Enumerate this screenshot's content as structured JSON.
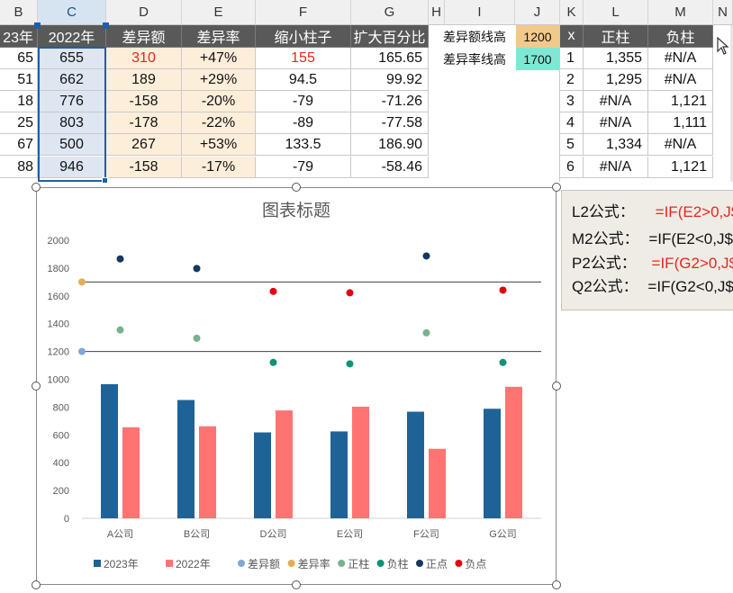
{
  "columns": [
    "B",
    "C",
    "D",
    "E",
    "F",
    "G",
    "H",
    "I",
    "J",
    "K",
    "L",
    "M",
    "N"
  ],
  "table1": {
    "headers": [
      "23年",
      "2022年",
      "差异额",
      "差异率",
      "缩小柱子",
      "扩大百分比"
    ],
    "rows": [
      [
        "65",
        "655",
        "310",
        "+47%",
        "155",
        "165.65"
      ],
      [
        "51",
        "662",
        "189",
        "+29%",
        "94.5",
        "99.92"
      ],
      [
        "18",
        "776",
        "-158",
        "-20%",
        "-79",
        "-71.26"
      ],
      [
        "25",
        "803",
        "-178",
        "-22%",
        "-89",
        "-77.58"
      ],
      [
        "67",
        "500",
        "267",
        "+53%",
        "133.5",
        "186.90"
      ],
      [
        "88",
        "946",
        "-158",
        "-17%",
        "-79",
        "-58.46"
      ]
    ]
  },
  "params": {
    "diff_amount_label": "差异额线高",
    "diff_amount_value": "1200",
    "diff_rate_label": "差异率线高",
    "diff_rate_value": "1700",
    "colors": {
      "amount_bg": "#f3c98b",
      "rate_bg": "#7fe8d4"
    }
  },
  "table2": {
    "headers": [
      "x",
      "正柱",
      "负柱"
    ],
    "rows": [
      [
        "1",
        "1,355",
        "#N/A"
      ],
      [
        "2",
        "1,295",
        "#N/A"
      ],
      [
        "3",
        "#N/A",
        "1,121"
      ],
      [
        "4",
        "#N/A",
        "1,111"
      ],
      [
        "5",
        "1,334",
        "#N/A"
      ],
      [
        "6",
        "#N/A",
        "1,121"
      ]
    ]
  },
  "formulas": [
    {
      "label": "L2公式：",
      "code": "=IF(E2>0,J$"
    },
    {
      "label": "M2公式：",
      "code": "=IF(E2<0,J$"
    },
    {
      "label": "P2公式：",
      "code": "=IF(G2>0,J$"
    },
    {
      "label": "Q2公式：",
      "code": "=IF(G2<0,J$"
    }
  ],
  "chart_data": {
    "type": "bar",
    "title": "图表标题",
    "categories": [
      "A公司",
      "B公司",
      "D公司",
      "E公司",
      "F公司",
      "G公司"
    ],
    "ylim": [
      0,
      2000
    ],
    "yticks": [
      0,
      200,
      400,
      600,
      800,
      1000,
      1200,
      1400,
      1600,
      1800,
      2000
    ],
    "series": [
      {
        "name": "2023年",
        "kind": "bar",
        "color": "#1f6396",
        "values": [
          965,
          851,
          618,
          625,
          767,
          788
        ]
      },
      {
        "name": "2022年",
        "kind": "bar",
        "color": "#ff7373",
        "values": [
          655,
          662,
          776,
          803,
          500,
          946
        ]
      },
      {
        "name": "差异额",
        "kind": "line",
        "color": "#7fa7d6",
        "values": [
          1200,
          1200,
          1200,
          1200,
          1200,
          1200
        ]
      },
      {
        "name": "差异率",
        "kind": "line",
        "color": "#e0b050",
        "values": [
          1700,
          1700,
          1700,
          1700,
          1700,
          1700
        ]
      },
      {
        "name": "正柱",
        "kind": "point",
        "color": "#76b28b",
        "values": [
          1355,
          1295,
          null,
          null,
          1334,
          null
        ]
      },
      {
        "name": "负柱",
        "kind": "point",
        "color": "#0f9275",
        "values": [
          null,
          null,
          1121,
          1111,
          null,
          1121
        ]
      },
      {
        "name": "正点",
        "kind": "point",
        "color": "#12395e",
        "values": [
          1866,
          1797,
          null,
          null,
          1887,
          null
        ]
      },
      {
        "name": "负点",
        "kind": "point",
        "color": "#e3000f",
        "values": [
          null,
          null,
          1632,
          1622,
          null,
          1641
        ]
      }
    ],
    "legend_position": "bottom",
    "grid": false
  }
}
